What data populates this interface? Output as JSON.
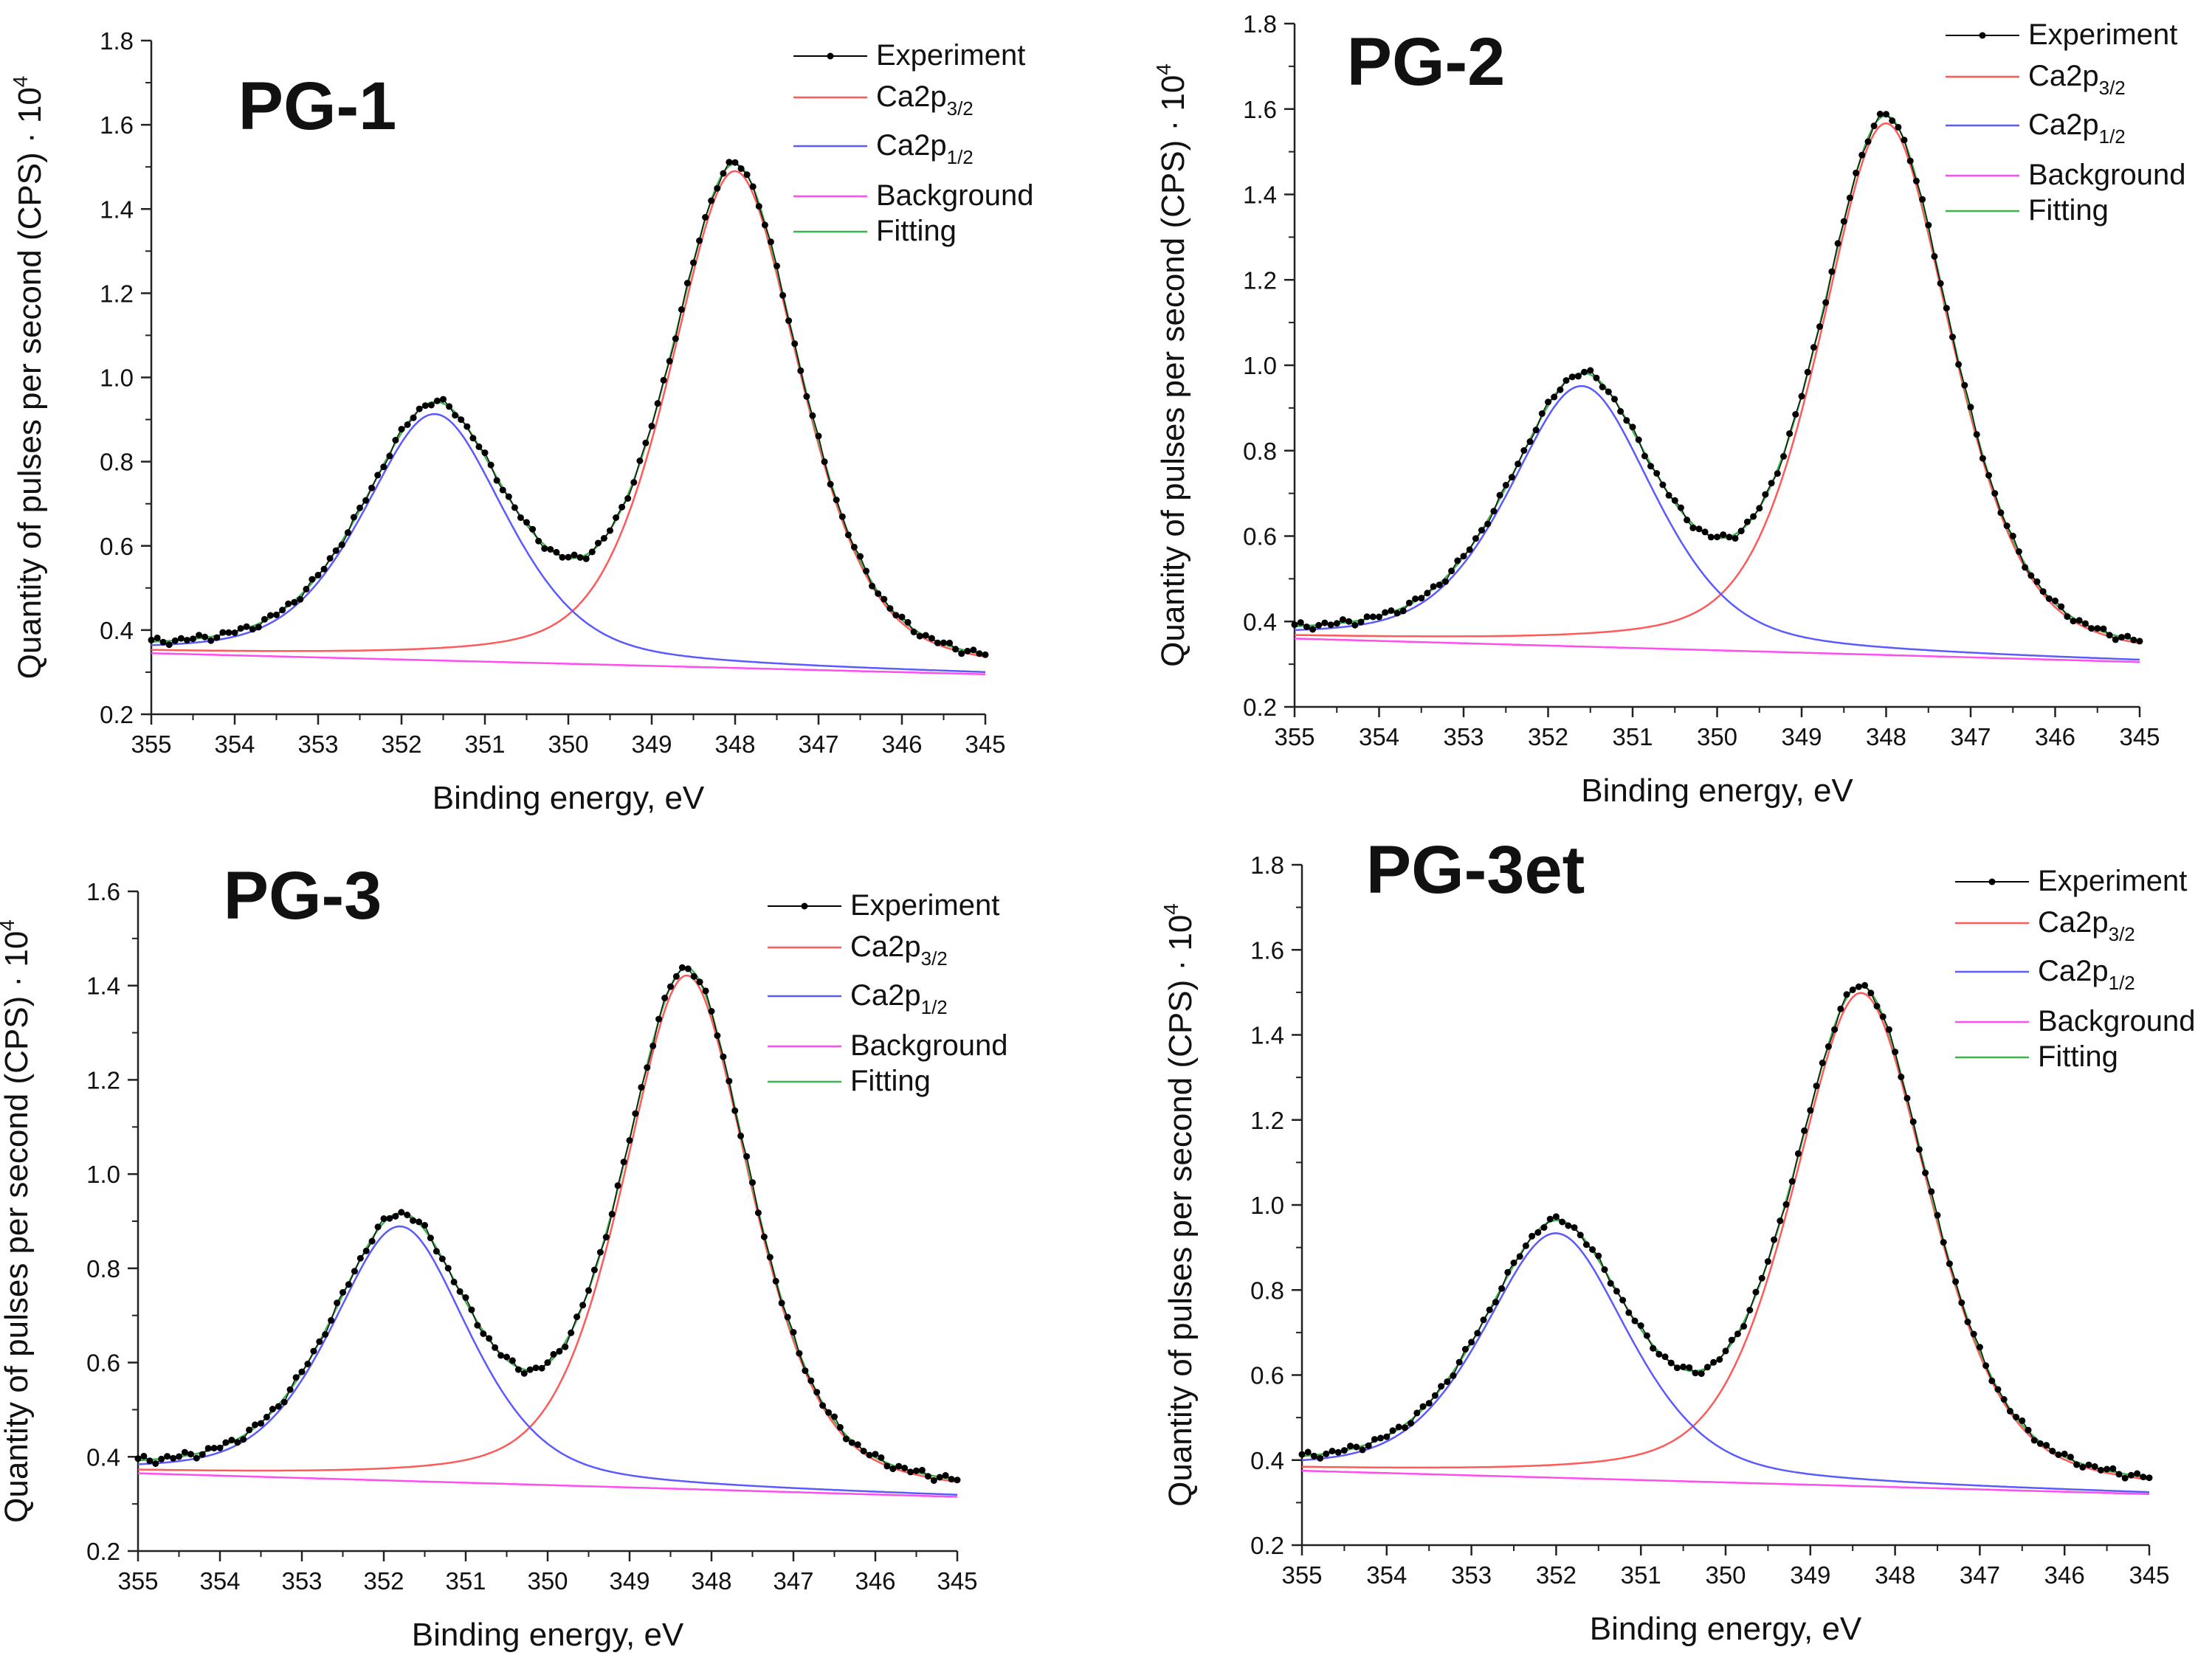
{
  "figure": {
    "panels": [
      {
        "chart_data": {
          "type": "line",
          "title": "PG-1",
          "xlabel": "Binding energy, eV",
          "ylabel": "Quantity of pulses per second  (CPS) · 10",
          "ylabel_exponent": "4",
          "xlim": [
            355,
            345
          ],
          "ylim": [
            0.2,
            1.8
          ],
          "x_ticks": [
            "355",
            "354",
            "353",
            "352",
            "351",
            "350",
            "349",
            "348",
            "347",
            "346",
            "345"
          ],
          "y_ticks": [
            "0.2",
            "0.4",
            "0.6",
            "0.8",
            "1.0",
            "1.2",
            "1.4",
            "1.6",
            "1.8"
          ],
          "peaks": [
            {
              "name": "Ca2p3/2",
              "center": 348.0,
              "height_above_background": 1.18,
              "sigma": 0.82
            },
            {
              "name": "Ca2p1/2",
              "center": 351.6,
              "height_above_background": 0.585,
              "sigma": 0.9
            }
          ],
          "background": {
            "from": [
              355,
              0.345
            ],
            "to": [
              345,
              0.295
            ]
          },
          "legend": [
            {
              "main": "Experiment",
              "sub": "",
              "color": "#000000"
            },
            {
              "main": "Ca2p",
              "sub": "3/2",
              "color": "#ff5a5a"
            },
            {
              "main": "Ca2p",
              "sub": "1/2",
              "color": "#5a5aff"
            },
            {
              "main": "Background",
              "sub": "",
              "color": "#ff4df0"
            },
            {
              "main": "Fitting",
              "sub": "",
              "color": "#3cb44b"
            }
          ]
        }
      },
      {
        "chart_data": {
          "type": "line",
          "title": "PG-2",
          "xlabel": "Binding energy, eV",
          "ylabel": "Quantity of pulses per second  (CPS) · 10",
          "ylabel_exponent": "4",
          "xlim": [
            355,
            345
          ],
          "ylim": [
            0.2,
            1.8
          ],
          "x_ticks": [
            "355",
            "354",
            "353",
            "352",
            "351",
            "350",
            "349",
            "348",
            "347",
            "346",
            "345"
          ],
          "y_ticks": [
            "0.2",
            "0.4",
            "0.6",
            "0.8",
            "1.0",
            "1.2",
            "1.4",
            "1.6",
            "1.8"
          ],
          "peaks": [
            {
              "name": "Ca2p3/2",
              "center": 348.0,
              "height_above_background": 1.245,
              "sigma": 0.82
            },
            {
              "name": "Ca2p1/2",
              "center": 351.6,
              "height_above_background": 0.61,
              "sigma": 0.9
            }
          ],
          "background": {
            "from": [
              355,
              0.36
            ],
            "to": [
              345,
              0.305
            ]
          },
          "legend": [
            {
              "main": "Experiment",
              "sub": "",
              "color": "#000000"
            },
            {
              "main": "Ca2p",
              "sub": "3/2",
              "color": "#ff5a5a"
            },
            {
              "main": "Ca2p",
              "sub": "1/2",
              "color": "#5a5aff"
            },
            {
              "main": "Background",
              "sub": "",
              "color": "#ff4df0"
            },
            {
              "main": "Fitting",
              "sub": "",
              "color": "#3cb44b"
            }
          ]
        }
      },
      {
        "chart_data": {
          "type": "line",
          "title": "PG-3",
          "xlabel": "Binding energy, eV",
          "ylabel": "Quantity of pulses per second  (CPS) · 10",
          "ylabel_exponent": "4",
          "xlim": [
            355,
            345
          ],
          "ylim": [
            0.2,
            1.6
          ],
          "x_ticks": [
            "355",
            "354",
            "353",
            "352",
            "351",
            "350",
            "349",
            "348",
            "347",
            "346",
            "345"
          ],
          "y_ticks": [
            "0.2",
            "0.4",
            "0.6",
            "0.8",
            "1.0",
            "1.2",
            "1.4",
            "1.6"
          ],
          "peaks": [
            {
              "name": "Ca2p3/2",
              "center": 348.3,
              "height_above_background": 1.09,
              "sigma": 0.82
            },
            {
              "name": "Ca2p1/2",
              "center": 351.8,
              "height_above_background": 0.54,
              "sigma": 0.88
            }
          ],
          "background": {
            "from": [
              355,
              0.365
            ],
            "to": [
              345,
              0.315
            ]
          },
          "legend": [
            {
              "main": "Experiment",
              "sub": "",
              "color": "#000000"
            },
            {
              "main": "Ca2p",
              "sub": "3/2",
              "color": "#ff5a5a"
            },
            {
              "main": "Ca2p",
              "sub": "1/2",
              "color": "#5a5aff"
            },
            {
              "main": "Background",
              "sub": "",
              "color": "#ff4df0"
            },
            {
              "main": "Fitting",
              "sub": "",
              "color": "#3cb44b"
            }
          ]
        }
      },
      {
        "chart_data": {
          "type": "line",
          "title": "PG-3et",
          "xlabel": "Binding energy, eV",
          "ylabel": "Quantity of pulses per second  (CPS) · 10",
          "ylabel_exponent": "4",
          "xlim": [
            355,
            345
          ],
          "ylim": [
            0.2,
            1.8
          ],
          "x_ticks": [
            "355",
            "354",
            "353",
            "352",
            "351",
            "350",
            "349",
            "348",
            "347",
            "346",
            "345"
          ],
          "y_ticks": [
            "0.2",
            "0.4",
            "0.6",
            "0.8",
            "1.0",
            "1.2",
            "1.4",
            "1.6",
            "1.8"
          ],
          "peaks": [
            {
              "name": "Ca2p3/2",
              "center": 348.4,
              "height_above_background": 1.16,
              "sigma": 0.85
            },
            {
              "name": "Ca2p1/2",
              "center": 352.0,
              "height_above_background": 0.575,
              "sigma": 0.9
            }
          ],
          "background": {
            "from": [
              355,
              0.375
            ],
            "to": [
              345,
              0.32
            ]
          },
          "legend": [
            {
              "main": "Experiment",
              "sub": "",
              "color": "#000000"
            },
            {
              "main": "Ca2p",
              "sub": "3/2",
              "color": "#ff5a5a"
            },
            {
              "main": "Ca2p",
              "sub": "1/2",
              "color": "#5a5aff"
            },
            {
              "main": "Background",
              "sub": "",
              "color": "#ff4df0"
            },
            {
              "main": "Fitting",
              "sub": "",
              "color": "#3cb44b"
            }
          ]
        }
      }
    ]
  }
}
